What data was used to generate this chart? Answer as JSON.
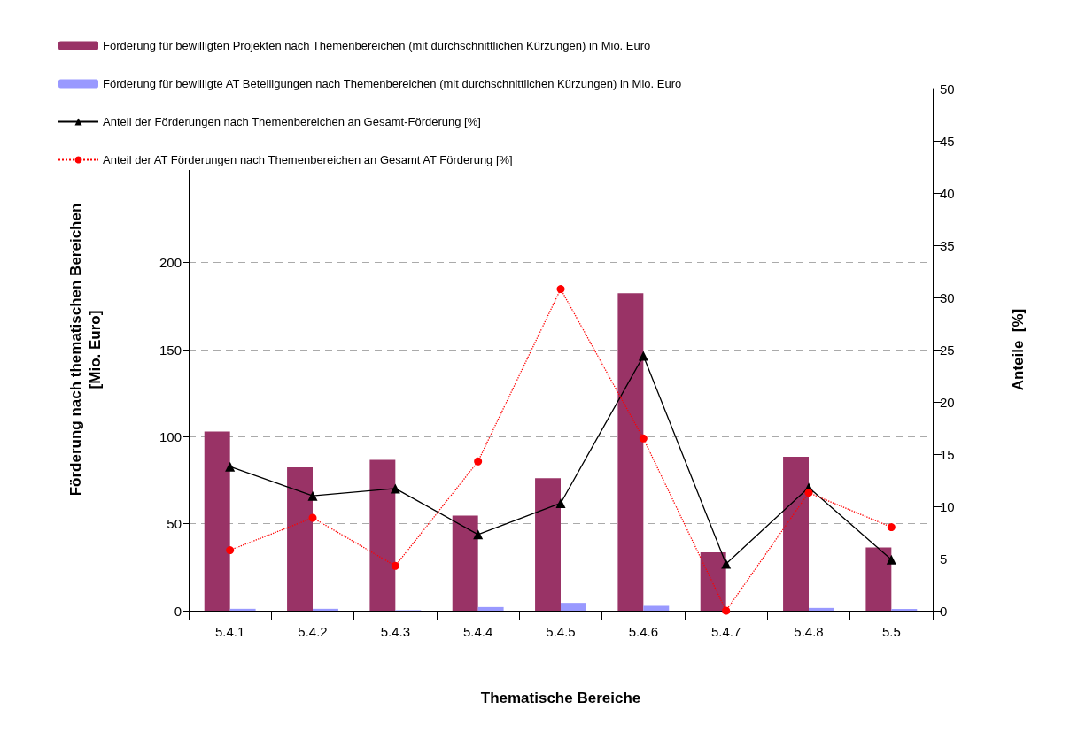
{
  "chart_data": {
    "type": "bar",
    "categories": [
      "5.4.1",
      "5.4.2",
      "5.4.3",
      "5.4.4",
      "5.4.5",
      "5.4.6",
      "5.4.7",
      "5.4.8",
      "5.5"
    ],
    "xlabel": "Thematische Bereiche",
    "ylabel": "Förderung nach thematischen Bereichen\n[Mio. Euro]",
    "y2label": "Anteile  [%]",
    "ylim": [
      0,
      300
    ],
    "yticks": [
      0,
      50,
      100,
      150,
      200
    ],
    "y2lim": [
      0,
      50
    ],
    "y2ticks": [
      0,
      5,
      10,
      15,
      20,
      25,
      30,
      35,
      40,
      45,
      50
    ],
    "grid": "y",
    "legend": "top left",
    "series": [
      {
        "name": "Förderung für bewilligten Projekten nach Themenbereichen (mit durchschnittlichen Kürzungen) in Mio. Euro",
        "color": "#993366",
        "values": [
          103,
          82.4,
          86.7,
          54.6,
          76.2,
          182.4,
          33.5,
          88.5,
          36.4
        ]
      },
      {
        "name": "Förderung für bewilligte AT Beteiligungen nach Themenbereichen (mit durchschnittlichen Kürzungen) in Mio. Euro",
        "color": "#9999ff",
        "values": [
          1.1,
          1.1,
          0.3,
          2.1,
          4.5,
          2.8,
          0,
          1.6,
          1.0
        ]
      },
      {
        "name": "Anteil der Förderungen nach Themenbereichen an Gesamt-Förderung [%]",
        "type": "line",
        "axis": "y2",
        "color": "#000000",
        "marker": "triangle",
        "line_style": "solid",
        "values": [
          13.8,
          11.0,
          11.7,
          7.3,
          10.3,
          24.4,
          4.5,
          11.8,
          4.9
        ]
      },
      {
        "name": "Anteil der AT Förderungen nach Themenbereichen an Gesamt AT Förderung [%]",
        "type": "line",
        "axis": "y2",
        "color": "#ff0000",
        "marker": "circle",
        "line_style": "dotted",
        "values": [
          5.8,
          8.9,
          4.3,
          14.3,
          30.8,
          16.5,
          0,
          11.3,
          8.0
        ]
      }
    ]
  }
}
